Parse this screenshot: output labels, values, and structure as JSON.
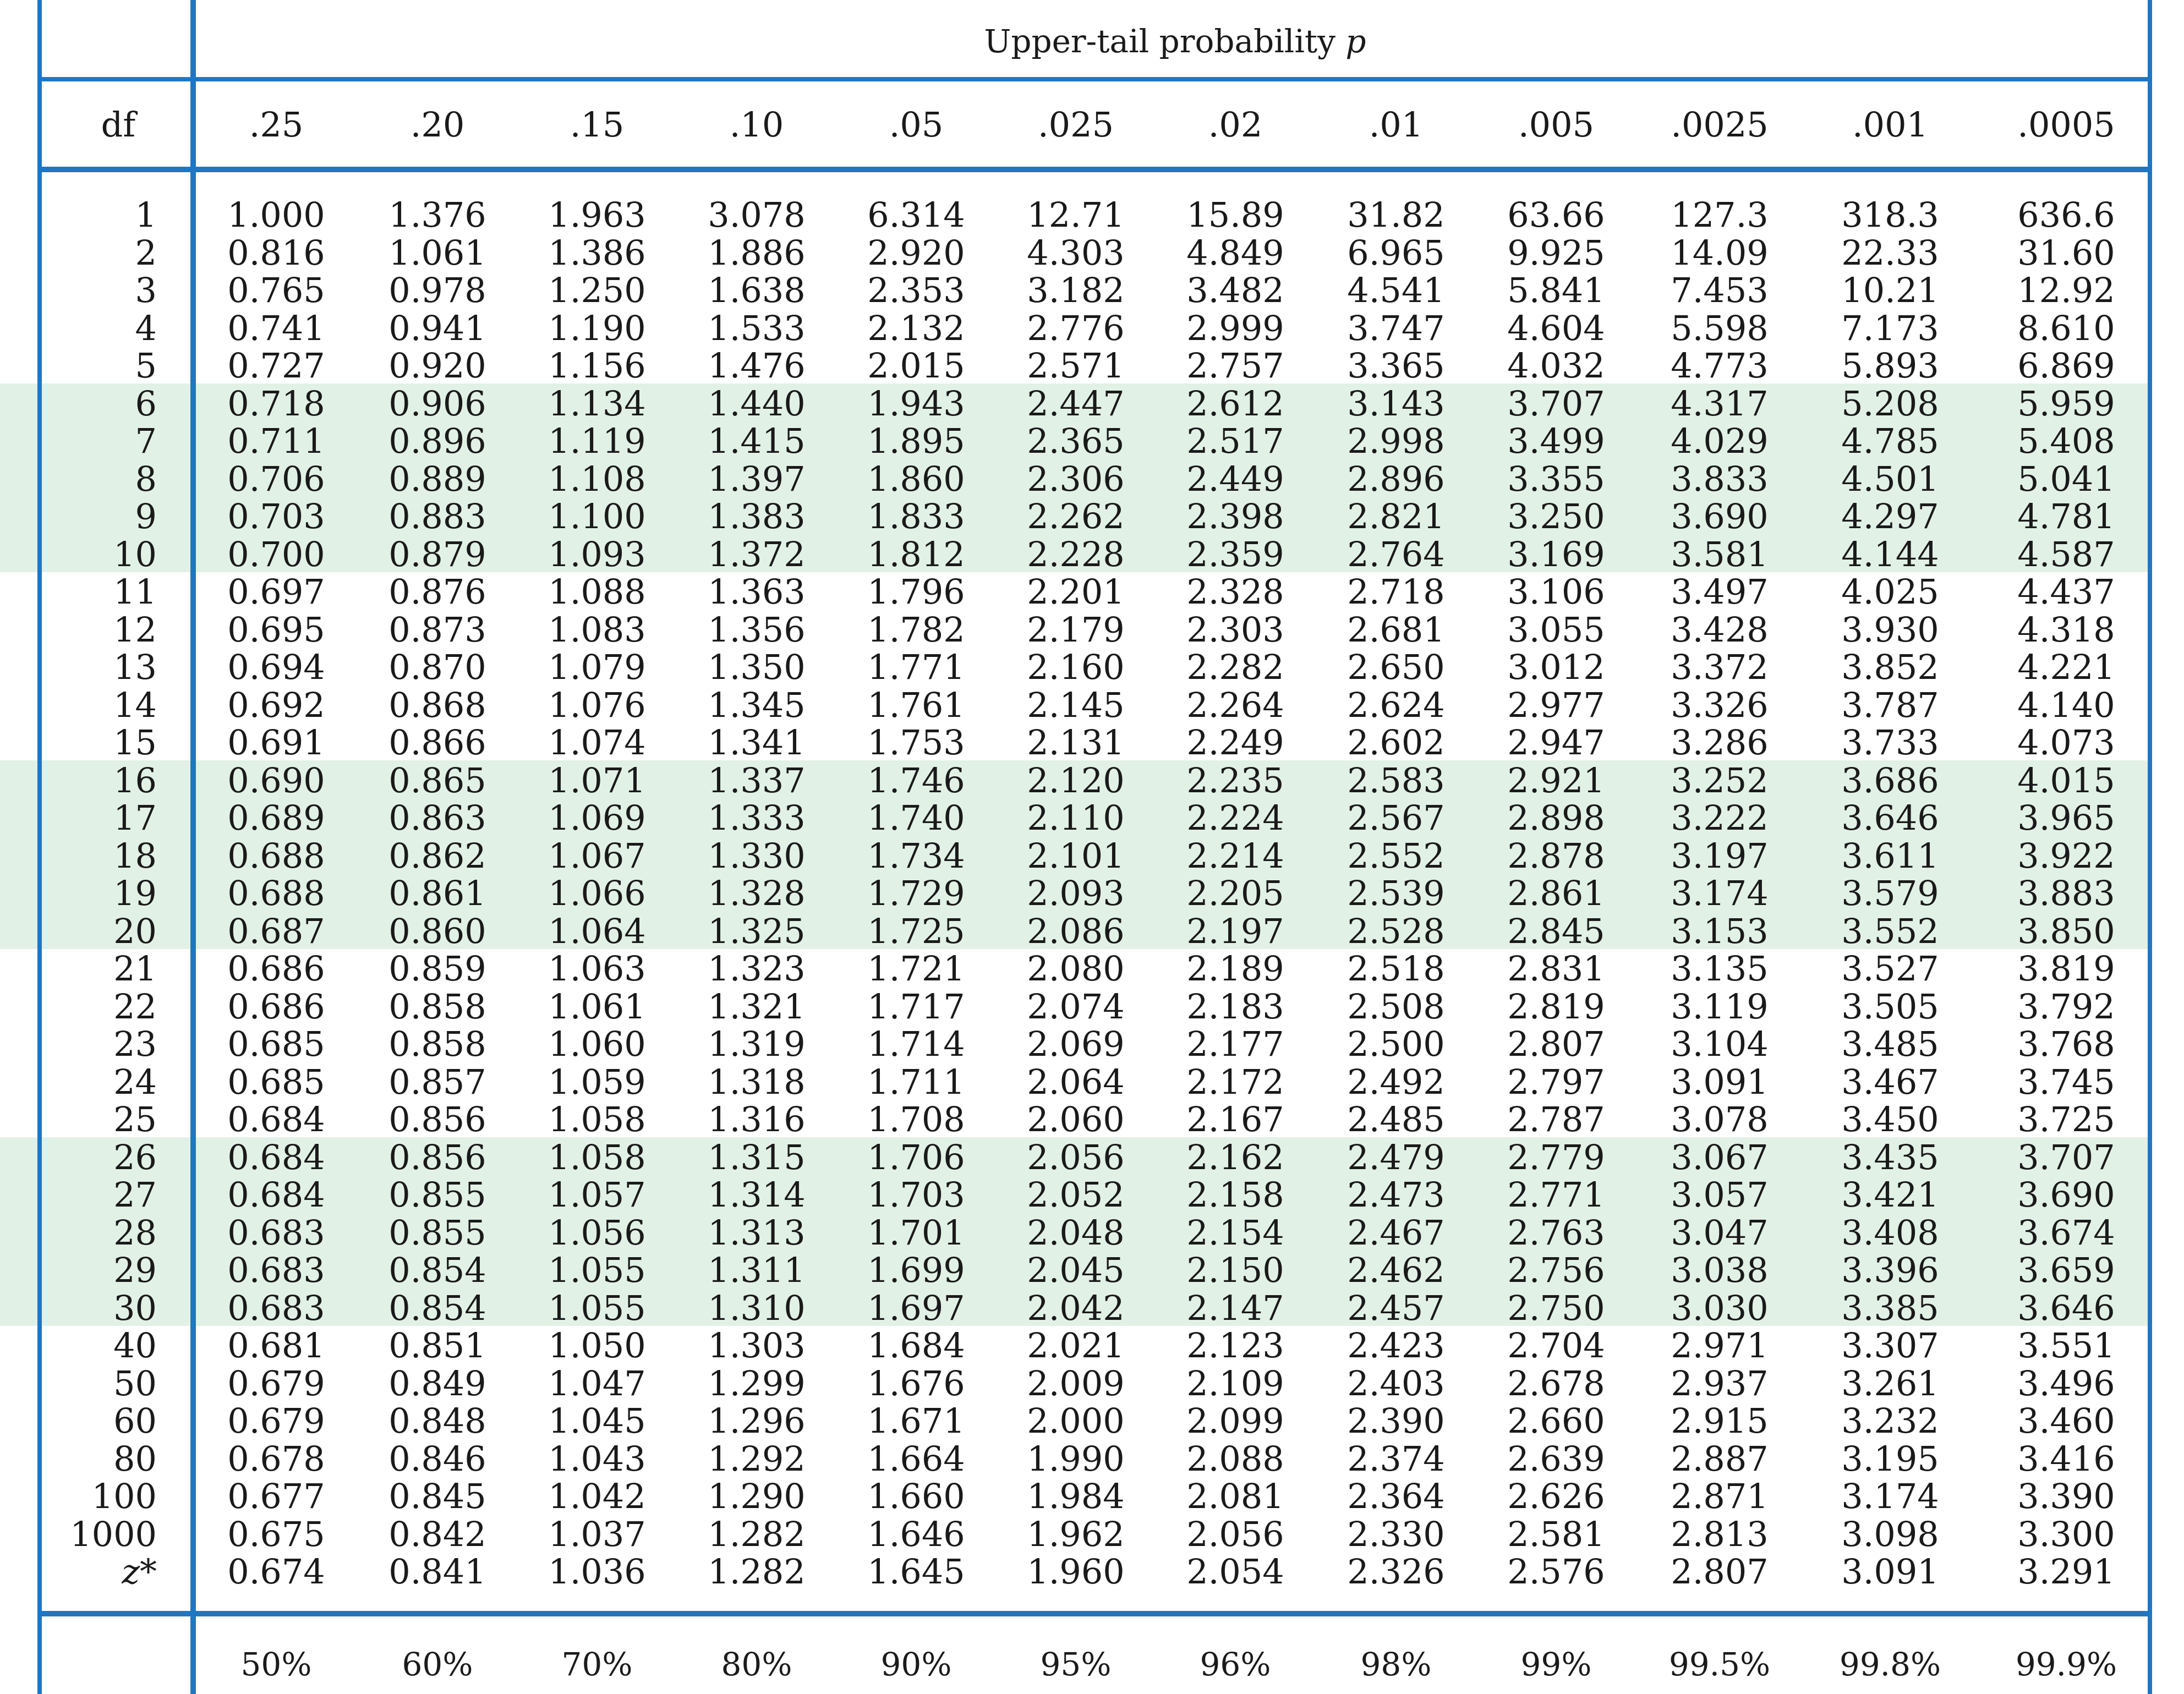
{
  "title": {
    "text": "Upper-tail probability ",
    "symbol": "p"
  },
  "header": {
    "df_label": "df",
    "p_values": [
      ".25",
      ".20",
      ".15",
      ".10",
      ".05",
      ".025",
      ".02",
      ".01",
      ".005",
      ".0025",
      ".001",
      ".0005"
    ]
  },
  "rows": [
    {
      "df": "1",
      "values": [
        "1.000",
        "1.376",
        "1.963",
        "3.078",
        "6.314",
        "12.71",
        "15.89",
        "31.82",
        "63.66",
        "127.3",
        "318.3",
        "636.6"
      ]
    },
    {
      "df": "2",
      "values": [
        "0.816",
        "1.061",
        "1.386",
        "1.886",
        "2.920",
        "4.303",
        "4.849",
        "6.965",
        "9.925",
        "14.09",
        "22.33",
        "31.60"
      ]
    },
    {
      "df": "3",
      "values": [
        "0.765",
        "0.978",
        "1.250",
        "1.638",
        "2.353",
        "3.182",
        "3.482",
        "4.541",
        "5.841",
        "7.453",
        "10.21",
        "12.92"
      ]
    },
    {
      "df": "4",
      "values": [
        "0.741",
        "0.941",
        "1.190",
        "1.533",
        "2.132",
        "2.776",
        "2.999",
        "3.747",
        "4.604",
        "5.598",
        "7.173",
        "8.610"
      ]
    },
    {
      "df": "5",
      "values": [
        "0.727",
        "0.920",
        "1.156",
        "1.476",
        "2.015",
        "2.571",
        "2.757",
        "3.365",
        "4.032",
        "4.773",
        "5.893",
        "6.869"
      ]
    },
    {
      "df": "6",
      "values": [
        "0.718",
        "0.906",
        "1.134",
        "1.440",
        "1.943",
        "2.447",
        "2.612",
        "3.143",
        "3.707",
        "4.317",
        "5.208",
        "5.959"
      ]
    },
    {
      "df": "7",
      "values": [
        "0.711",
        "0.896",
        "1.119",
        "1.415",
        "1.895",
        "2.365",
        "2.517",
        "2.998",
        "3.499",
        "4.029",
        "4.785",
        "5.408"
      ]
    },
    {
      "df": "8",
      "values": [
        "0.706",
        "0.889",
        "1.108",
        "1.397",
        "1.860",
        "2.306",
        "2.449",
        "2.896",
        "3.355",
        "3.833",
        "4.501",
        "5.041"
      ]
    },
    {
      "df": "9",
      "values": [
        "0.703",
        "0.883",
        "1.100",
        "1.383",
        "1.833",
        "2.262",
        "2.398",
        "2.821",
        "3.250",
        "3.690",
        "4.297",
        "4.781"
      ]
    },
    {
      "df": "10",
      "values": [
        "0.700",
        "0.879",
        "1.093",
        "1.372",
        "1.812",
        "2.228",
        "2.359",
        "2.764",
        "3.169",
        "3.581",
        "4.144",
        "4.587"
      ]
    },
    {
      "df": "11",
      "values": [
        "0.697",
        "0.876",
        "1.088",
        "1.363",
        "1.796",
        "2.201",
        "2.328",
        "2.718",
        "3.106",
        "3.497",
        "4.025",
        "4.437"
      ]
    },
    {
      "df": "12",
      "values": [
        "0.695",
        "0.873",
        "1.083",
        "1.356",
        "1.782",
        "2.179",
        "2.303",
        "2.681",
        "3.055",
        "3.428",
        "3.930",
        "4.318"
      ]
    },
    {
      "df": "13",
      "values": [
        "0.694",
        "0.870",
        "1.079",
        "1.350",
        "1.771",
        "2.160",
        "2.282",
        "2.650",
        "3.012",
        "3.372",
        "3.852",
        "4.221"
      ]
    },
    {
      "df": "14",
      "values": [
        "0.692",
        "0.868",
        "1.076",
        "1.345",
        "1.761",
        "2.145",
        "2.264",
        "2.624",
        "2.977",
        "3.326",
        "3.787",
        "4.140"
      ]
    },
    {
      "df": "15",
      "values": [
        "0.691",
        "0.866",
        "1.074",
        "1.341",
        "1.753",
        "2.131",
        "2.249",
        "2.602",
        "2.947",
        "3.286",
        "3.733",
        "4.073"
      ]
    },
    {
      "df": "16",
      "values": [
        "0.690",
        "0.865",
        "1.071",
        "1.337",
        "1.746",
        "2.120",
        "2.235",
        "2.583",
        "2.921",
        "3.252",
        "3.686",
        "4.015"
      ]
    },
    {
      "df": "17",
      "values": [
        "0.689",
        "0.863",
        "1.069",
        "1.333",
        "1.740",
        "2.110",
        "2.224",
        "2.567",
        "2.898",
        "3.222",
        "3.646",
        "3.965"
      ]
    },
    {
      "df": "18",
      "values": [
        "0.688",
        "0.862",
        "1.067",
        "1.330",
        "1.734",
        "2.101",
        "2.214",
        "2.552",
        "2.878",
        "3.197",
        "3.611",
        "3.922"
      ]
    },
    {
      "df": "19",
      "values": [
        "0.688",
        "0.861",
        "1.066",
        "1.328",
        "1.729",
        "2.093",
        "2.205",
        "2.539",
        "2.861",
        "3.174",
        "3.579",
        "3.883"
      ]
    },
    {
      "df": "20",
      "values": [
        "0.687",
        "0.860",
        "1.064",
        "1.325",
        "1.725",
        "2.086",
        "2.197",
        "2.528",
        "2.845",
        "3.153",
        "3.552",
        "3.850"
      ]
    },
    {
      "df": "21",
      "values": [
        "0.686",
        "0.859",
        "1.063",
        "1.323",
        "1.721",
        "2.080",
        "2.189",
        "2.518",
        "2.831",
        "3.135",
        "3.527",
        "3.819"
      ]
    },
    {
      "df": "22",
      "values": [
        "0.686",
        "0.858",
        "1.061",
        "1.321",
        "1.717",
        "2.074",
        "2.183",
        "2.508",
        "2.819",
        "3.119",
        "3.505",
        "3.792"
      ]
    },
    {
      "df": "23",
      "values": [
        "0.685",
        "0.858",
        "1.060",
        "1.319",
        "1.714",
        "2.069",
        "2.177",
        "2.500",
        "2.807",
        "3.104",
        "3.485",
        "3.768"
      ]
    },
    {
      "df": "24",
      "values": [
        "0.685",
        "0.857",
        "1.059",
        "1.318",
        "1.711",
        "2.064",
        "2.172",
        "2.492",
        "2.797",
        "3.091",
        "3.467",
        "3.745"
      ]
    },
    {
      "df": "25",
      "values": [
        "0.684",
        "0.856",
        "1.058",
        "1.316",
        "1.708",
        "2.060",
        "2.167",
        "2.485",
        "2.787",
        "3.078",
        "3.450",
        "3.725"
      ]
    },
    {
      "df": "26",
      "values": [
        "0.684",
        "0.856",
        "1.058",
        "1.315",
        "1.706",
        "2.056",
        "2.162",
        "2.479",
        "2.779",
        "3.067",
        "3.435",
        "3.707"
      ]
    },
    {
      "df": "27",
      "values": [
        "0.684",
        "0.855",
        "1.057",
        "1.314",
        "1.703",
        "2.052",
        "2.158",
        "2.473",
        "2.771",
        "3.057",
        "3.421",
        "3.690"
      ]
    },
    {
      "df": "28",
      "values": [
        "0.683",
        "0.855",
        "1.056",
        "1.313",
        "1.701",
        "2.048",
        "2.154",
        "2.467",
        "2.763",
        "3.047",
        "3.408",
        "3.674"
      ]
    },
    {
      "df": "29",
      "values": [
        "0.683",
        "0.854",
        "1.055",
        "1.311",
        "1.699",
        "2.045",
        "2.150",
        "2.462",
        "2.756",
        "3.038",
        "3.396",
        "3.659"
      ]
    },
    {
      "df": "30",
      "values": [
        "0.683",
        "0.854",
        "1.055",
        "1.310",
        "1.697",
        "2.042",
        "2.147",
        "2.457",
        "2.750",
        "3.030",
        "3.385",
        "3.646"
      ]
    },
    {
      "df": "40",
      "values": [
        "0.681",
        "0.851",
        "1.050",
        "1.303",
        "1.684",
        "2.021",
        "2.123",
        "2.423",
        "2.704",
        "2.971",
        "3.307",
        "3.551"
      ]
    },
    {
      "df": "50",
      "values": [
        "0.679",
        "0.849",
        "1.047",
        "1.299",
        "1.676",
        "2.009",
        "2.109",
        "2.403",
        "2.678",
        "2.937",
        "3.261",
        "3.496"
      ]
    },
    {
      "df": "60",
      "values": [
        "0.679",
        "0.848",
        "1.045",
        "1.296",
        "1.671",
        "2.000",
        "2.099",
        "2.390",
        "2.660",
        "2.915",
        "3.232",
        "3.460"
      ]
    },
    {
      "df": "80",
      "values": [
        "0.678",
        "0.846",
        "1.043",
        "1.292",
        "1.664",
        "1.990",
        "2.088",
        "2.374",
        "2.639",
        "2.887",
        "3.195",
        "3.416"
      ]
    },
    {
      "df": "100",
      "values": [
        "0.677",
        "0.845",
        "1.042",
        "1.290",
        "1.660",
        "1.984",
        "2.081",
        "2.364",
        "2.626",
        "2.871",
        "3.174",
        "3.390"
      ]
    },
    {
      "df": "1000",
      "values": [
        "0.675",
        "0.842",
        "1.037",
        "1.282",
        "1.646",
        "1.962",
        "2.056",
        "2.330",
        "2.581",
        "2.813",
        "3.098",
        "3.300"
      ]
    },
    {
      "df": "z*",
      "values": [
        "0.674",
        "0.841",
        "1.036",
        "1.282",
        "1.645",
        "1.960",
        "2.054",
        "2.326",
        "2.576",
        "2.807",
        "3.091",
        "3.291"
      ]
    }
  ],
  "confidence_levels": [
    "50%",
    "60%",
    "70%",
    "80%",
    "90%",
    "95%",
    "96%",
    "98%",
    "99%",
    "99.5%",
    "99.8%",
    "99.9%"
  ],
  "colors": {
    "rule": "#1f77c4",
    "band": "#e2f1e6"
  }
}
